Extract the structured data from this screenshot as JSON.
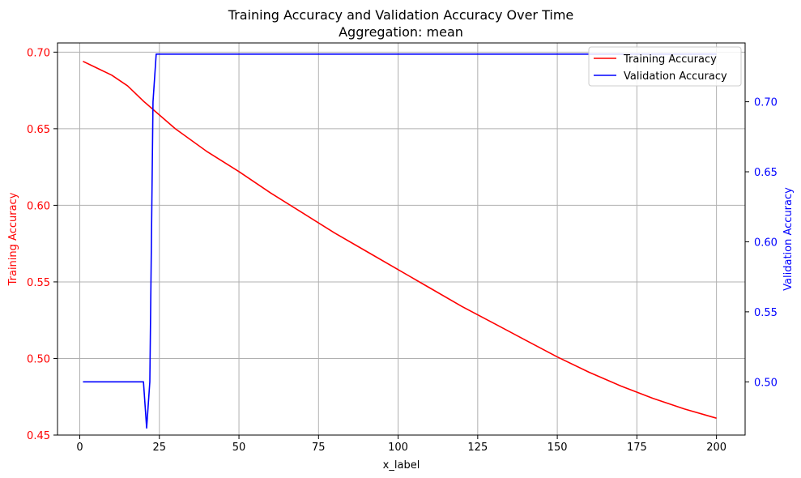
{
  "chart_data": {
    "type": "line",
    "title": "Training Accuracy and Validation Accuracy Over Time",
    "subtitle": "Aggregation: mean",
    "xlabel": "x_label",
    "ylabel_left": "Training Accuracy",
    "ylabel_right": "Validation Accuracy",
    "xlim": [
      -7,
      209
    ],
    "ylim_left": [
      0.45,
      0.706
    ],
    "ylim_right": [
      0.462,
      0.742
    ],
    "x_ticks": [
      0,
      25,
      50,
      75,
      100,
      125,
      150,
      175,
      200
    ],
    "y_ticks_left": [
      0.45,
      0.5,
      0.55,
      0.6,
      0.65,
      0.7
    ],
    "y_ticks_right": [
      0.5,
      0.55,
      0.6,
      0.65,
      0.7
    ],
    "grid": true,
    "legend_position": "top-right",
    "series": [
      {
        "name": "Training Accuracy",
        "axis": "left",
        "color": "#ff0000",
        "points": [
          [
            1,
            0.694
          ],
          [
            5,
            0.69
          ],
          [
            10,
            0.685
          ],
          [
            15,
            0.678
          ],
          [
            20,
            0.668
          ],
          [
            25,
            0.659
          ],
          [
            30,
            0.65
          ],
          [
            40,
            0.635
          ],
          [
            50,
            0.622
          ],
          [
            60,
            0.608
          ],
          [
            70,
            0.595
          ],
          [
            80,
            0.582
          ],
          [
            90,
            0.57
          ],
          [
            100,
            0.558
          ],
          [
            110,
            0.546
          ],
          [
            120,
            0.534
          ],
          [
            130,
            0.523
          ],
          [
            140,
            0.512
          ],
          [
            150,
            0.501
          ],
          [
            160,
            0.491
          ],
          [
            170,
            0.482
          ],
          [
            180,
            0.474
          ],
          [
            190,
            0.467
          ],
          [
            200,
            0.461
          ]
        ]
      },
      {
        "name": "Validation Accuracy",
        "axis": "right",
        "color": "#0000ff",
        "points": [
          [
            1,
            0.5
          ],
          [
            20,
            0.5
          ],
          [
            21,
            0.467
          ],
          [
            22,
            0.5
          ],
          [
            23,
            0.7
          ],
          [
            24,
            0.734
          ],
          [
            200,
            0.734
          ]
        ]
      }
    ]
  }
}
